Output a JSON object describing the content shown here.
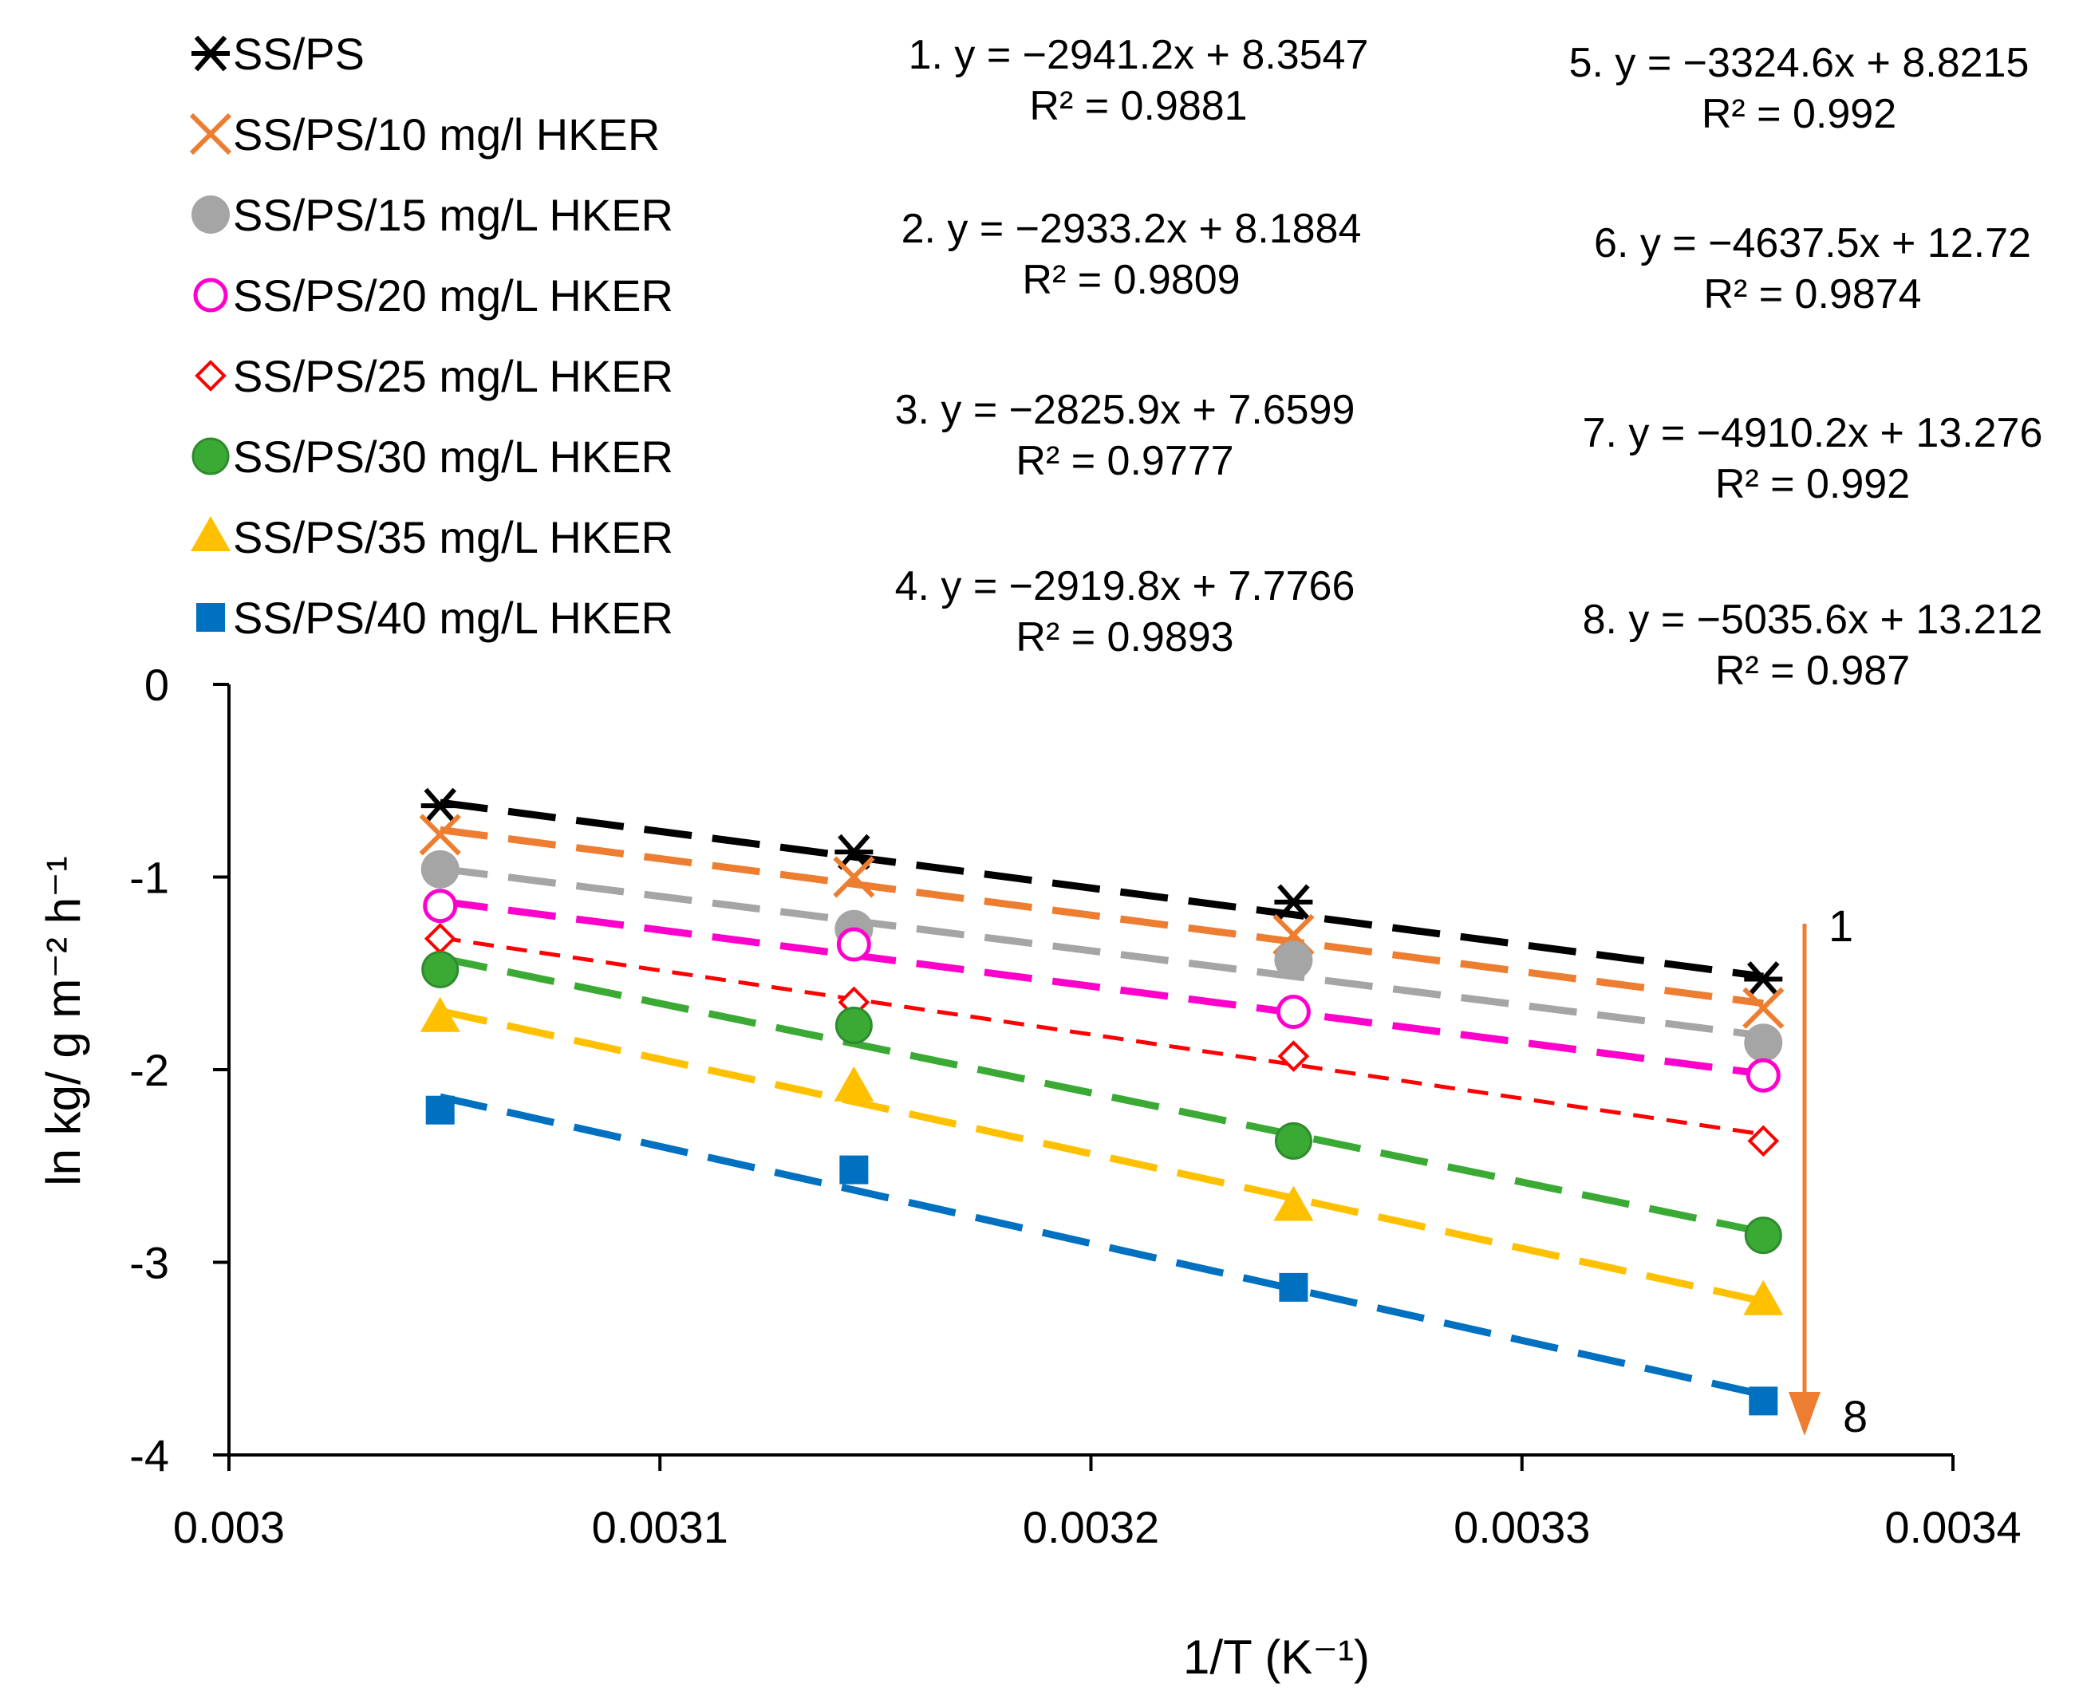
{
  "chart_data": {
    "type": "scatter",
    "xlabel": "1/T (K⁻¹)",
    "ylabel": "ln kg/ g m⁻² h⁻¹",
    "xlim": [
      0.003,
      0.0034
    ],
    "ylim": [
      -4,
      0
    ],
    "x_ticks": [
      "0.003",
      "0.0031",
      "0.0032",
      "0.0033",
      "0.0034"
    ],
    "y_ticks": [
      "0",
      "-1",
      "-2",
      "-3",
      "-4"
    ],
    "x": [
      0.003049,
      0.003145,
      0.003247,
      0.003356
    ],
    "legend_position": "top-left",
    "series": [
      {
        "name": "SS/PS",
        "marker": "asterisk",
        "color": "#000000",
        "values": [
          -0.63,
          -0.87,
          -1.13,
          -1.53
        ],
        "fit": {
          "slope": -2941.2,
          "intercept": 8.3547
        }
      },
      {
        "name": "SS/PS/10 mg/l HKER",
        "marker": "x",
        "color": "#ed7d31",
        "values": [
          -0.78,
          -1.0,
          -1.3,
          -1.68
        ],
        "fit": {
          "slope": -2933.2,
          "intercept": 8.1884
        }
      },
      {
        "name": "SS/PS/15 mg/L HKER",
        "marker": "circle-filled",
        "color": "#a5a5a5",
        "values": [
          -0.96,
          -1.27,
          -1.43,
          -1.86
        ],
        "fit": {
          "slope": -2825.9,
          "intercept": 7.6599
        }
      },
      {
        "name": "SS/PS/20 mg/L HKER",
        "marker": "circle-open",
        "color": "#ff00cc",
        "values": [
          -1.15,
          -1.35,
          -1.7,
          -2.03
        ],
        "fit": {
          "slope": -2919.8,
          "intercept": 7.7766
        }
      },
      {
        "name": "SS/PS/25 mg/L HKER",
        "marker": "diamond-open",
        "color": "#ff0000",
        "values": [
          -1.32,
          -1.65,
          -1.93,
          -2.37
        ],
        "fit": {
          "slope": -3324.6,
          "intercept": 8.8215
        }
      },
      {
        "name": "SS/PS/30 mg/L HKER",
        "marker": "circle-filled-ring",
        "color": "#3aaa35",
        "values": [
          -1.48,
          -1.77,
          -2.37,
          -2.86
        ],
        "fit": {
          "slope": -4637.5,
          "intercept": 12.72
        }
      },
      {
        "name": "SS/PS/35 mg/L HKER",
        "marker": "triangle",
        "color": "#ffc000",
        "values": [
          -1.73,
          -2.09,
          -2.71,
          -3.2
        ],
        "fit": {
          "slope": -4910.2,
          "intercept": 13.276
        }
      },
      {
        "name": "SS/PS/40 mg/L HKER",
        "marker": "square",
        "color": "#0070c0",
        "values": [
          -2.21,
          -2.52,
          -3.13,
          -3.72
        ],
        "fit": {
          "slope": -5035.6,
          "intercept": 13.212
        }
      }
    ],
    "equations": [
      {
        "eq": "1. y = −2941.2x + 8.3547",
        "r2": "R² = 0.9881"
      },
      {
        "eq": "2. y = −2933.2x + 8.1884",
        "r2": "R² = 0.9809"
      },
      {
        "eq": "3. y = −2825.9x + 7.6599",
        "r2": "R² = 0.9777"
      },
      {
        "eq": "4. y = −2919.8x + 7.7766",
        "r2": "R² = 0.9893"
      },
      {
        "eq": "5. y = −3324.6x + 8.8215",
        "r2": "R² = 0.992"
      },
      {
        "eq": "6. y = −4637.5x + 12.72",
        "r2": "R² = 0.9874"
      },
      {
        "eq": "7. y = −4910.2x + 13.276",
        "r2": "R² = 0.992"
      },
      {
        "eq": "8. y = −5035.6x + 13.212",
        "r2": "R² = 0.987"
      }
    ],
    "arrow": {
      "start_label": "1",
      "end_label": "8",
      "color": "#ed7d31"
    }
  }
}
